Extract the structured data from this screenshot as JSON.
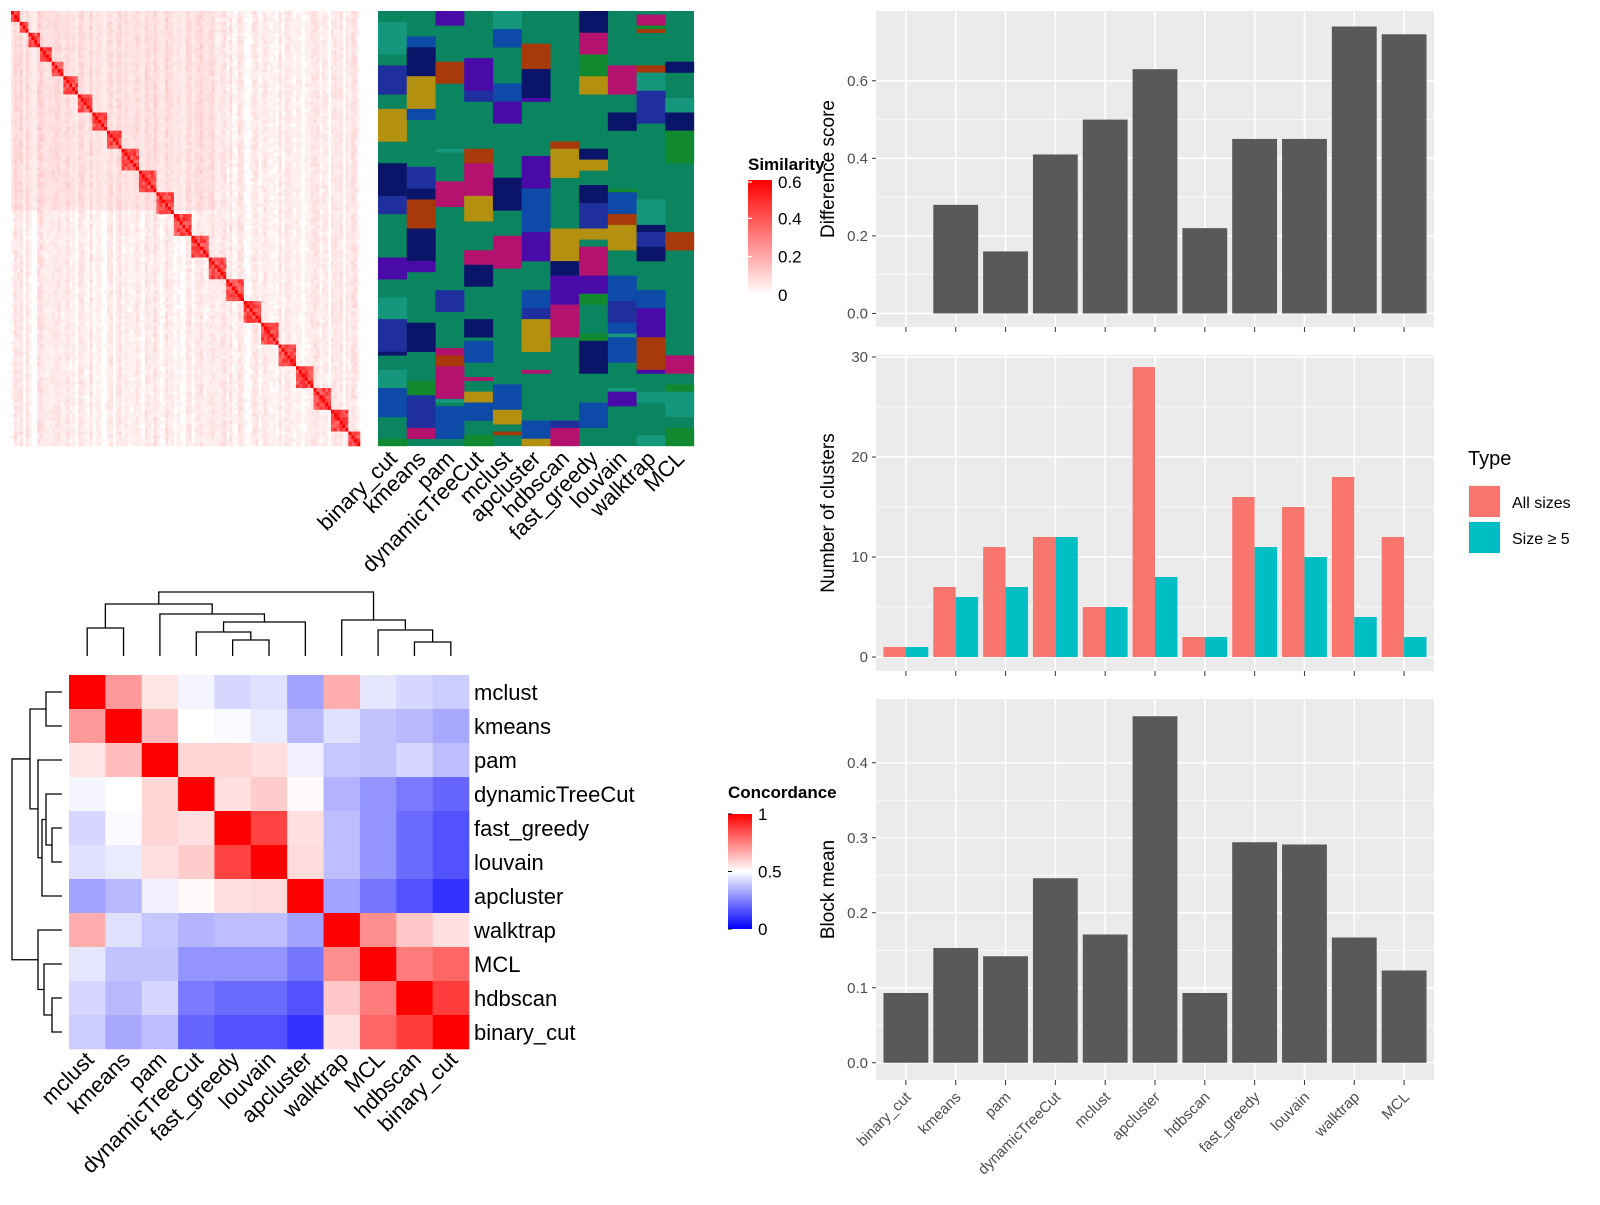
{
  "chart_data": [
    {
      "type": "heatmap",
      "id": "similarity_heatmap",
      "legend_title": "Similarity",
      "legend_ticks": [
        0.6,
        0.4,
        0.2,
        0
      ],
      "color_scale": {
        "low": "#ffffff",
        "high": "#ff0000",
        "max": 0.6
      },
      "n_rows": 120,
      "annotation_columns": [
        "binary_cut",
        "kmeans",
        "pam",
        "dynamicTreeCut",
        "mclust",
        "apcluster",
        "hdbscan",
        "fast_greedy",
        "louvain",
        "walktrap",
        "MCL"
      ],
      "annotation_palette": [
        "#0b8460",
        "#14977b",
        "#0a1469",
        "#4a0aa8",
        "#a8390a",
        "#118a2f",
        "#b5116e",
        "#0e4aa8",
        "#b49011",
        "#1f2f9e"
      ]
    },
    {
      "type": "heatmap",
      "id": "concordance_heatmap",
      "legend_title": "Concordance",
      "legend_ticks": [
        1,
        0.5,
        0
      ],
      "color_scale": {
        "low": "#0000ff",
        "mid": "#ffffff",
        "high": "#ff0000"
      },
      "rows": [
        "mclust",
        "kmeans",
        "pam",
        "dynamicTreeCut",
        "fast_greedy",
        "louvain",
        "apcluster",
        "walktrap",
        "MCL",
        "hdbscan",
        "binary_cut"
      ],
      "columns": [
        "mclust",
        "kmeans",
        "pam",
        "dynamicTreeCut",
        "fast_greedy",
        "louvain",
        "apcluster",
        "walktrap",
        "MCL",
        "hdbscan",
        "binary_cut"
      ],
      "values": [
        [
          1.0,
          0.7,
          0.55,
          0.48,
          0.42,
          0.44,
          0.32,
          0.66,
          0.45,
          0.42,
          0.4
        ],
        [
          0.7,
          1.0,
          0.63,
          0.5,
          0.49,
          0.46,
          0.36,
          0.44,
          0.38,
          0.36,
          0.33
        ],
        [
          0.55,
          0.63,
          1.0,
          0.58,
          0.58,
          0.56,
          0.47,
          0.39,
          0.38,
          0.42,
          0.37
        ],
        [
          0.48,
          0.5,
          0.58,
          1.0,
          0.56,
          0.6,
          0.51,
          0.35,
          0.29,
          0.24,
          0.2
        ],
        [
          0.42,
          0.49,
          0.58,
          0.56,
          1.0,
          0.87,
          0.56,
          0.37,
          0.29,
          0.21,
          0.16
        ],
        [
          0.44,
          0.46,
          0.56,
          0.6,
          0.87,
          1.0,
          0.57,
          0.37,
          0.29,
          0.21,
          0.16
        ],
        [
          0.32,
          0.36,
          0.47,
          0.51,
          0.56,
          0.57,
          1.0,
          0.32,
          0.23,
          0.16,
          0.1
        ],
        [
          0.66,
          0.44,
          0.39,
          0.35,
          0.37,
          0.37,
          0.32,
          1.0,
          0.72,
          0.61,
          0.56
        ],
        [
          0.45,
          0.38,
          0.38,
          0.29,
          0.29,
          0.29,
          0.23,
          0.72,
          1.0,
          0.76,
          0.8
        ],
        [
          0.42,
          0.36,
          0.42,
          0.24,
          0.21,
          0.21,
          0.16,
          0.61,
          0.76,
          1.0,
          0.88
        ],
        [
          0.4,
          0.33,
          0.37,
          0.2,
          0.16,
          0.16,
          0.1,
          0.56,
          0.8,
          0.88,
          1.0
        ]
      ]
    },
    {
      "type": "bar",
      "id": "difference_score",
      "ylabel": "Difference score",
      "categories": [
        "binary_cut",
        "kmeans",
        "pam",
        "dynamicTreeCut",
        "mclust",
        "apcluster",
        "hdbscan",
        "fast_greedy",
        "louvain",
        "walktrap",
        "MCL"
      ],
      "values": [
        0.0,
        0.28,
        0.16,
        0.41,
        0.5,
        0.63,
        0.22,
        0.45,
        0.45,
        0.74,
        0.72
      ],
      "ylim": [
        -0.035,
        0.78
      ],
      "yticks": [
        0.0,
        0.2,
        0.4,
        0.6
      ],
      "ytick_labels": [
        "0.0",
        "0.2",
        "0.4",
        "0.6"
      ],
      "grid": true,
      "bar_color": "#595959"
    },
    {
      "type": "bar",
      "id": "number_of_clusters",
      "ylabel": "Number of clusters",
      "categories": [
        "binary_cut",
        "kmeans",
        "pam",
        "dynamicTreeCut",
        "mclust",
        "apcluster",
        "hdbscan",
        "fast_greedy",
        "louvain",
        "walktrap",
        "MCL"
      ],
      "series": [
        {
          "name": "All sizes",
          "values": [
            1,
            7,
            11,
            12,
            5,
            29,
            2,
            16,
            15,
            18,
            12
          ],
          "color": "#f8766d"
        },
        {
          "name": "Size ≥ 5",
          "values": [
            1,
            6,
            7,
            12,
            5,
            8,
            2,
            11,
            10,
            4,
            2
          ],
          "color": "#00bfc4"
        }
      ],
      "ylim": [
        -1.4,
        30.2
      ],
      "yticks": [
        0,
        10,
        20,
        30
      ],
      "ytick_labels": [
        "0",
        "10",
        "20",
        "30"
      ],
      "legend_title": "Type",
      "legend_position": "right",
      "grid": true
    },
    {
      "type": "bar",
      "id": "block_mean",
      "ylabel": "Block mean",
      "categories": [
        "binary_cut",
        "kmeans",
        "pam",
        "dynamicTreeCut",
        "mclust",
        "apcluster",
        "hdbscan",
        "fast_greedy",
        "louvain",
        "walktrap",
        "MCL"
      ],
      "values": [
        0.093,
        0.153,
        0.142,
        0.246,
        0.171,
        0.462,
        0.093,
        0.294,
        0.291,
        0.167,
        0.123
      ],
      "ylim": [
        -0.023,
        0.485
      ],
      "yticks": [
        0.0,
        0.1,
        0.2,
        0.3,
        0.4
      ],
      "ytick_labels": [
        "0.0",
        "0.1",
        "0.2",
        "0.3",
        "0.4"
      ],
      "grid": true,
      "bar_color": "#595959"
    }
  ]
}
